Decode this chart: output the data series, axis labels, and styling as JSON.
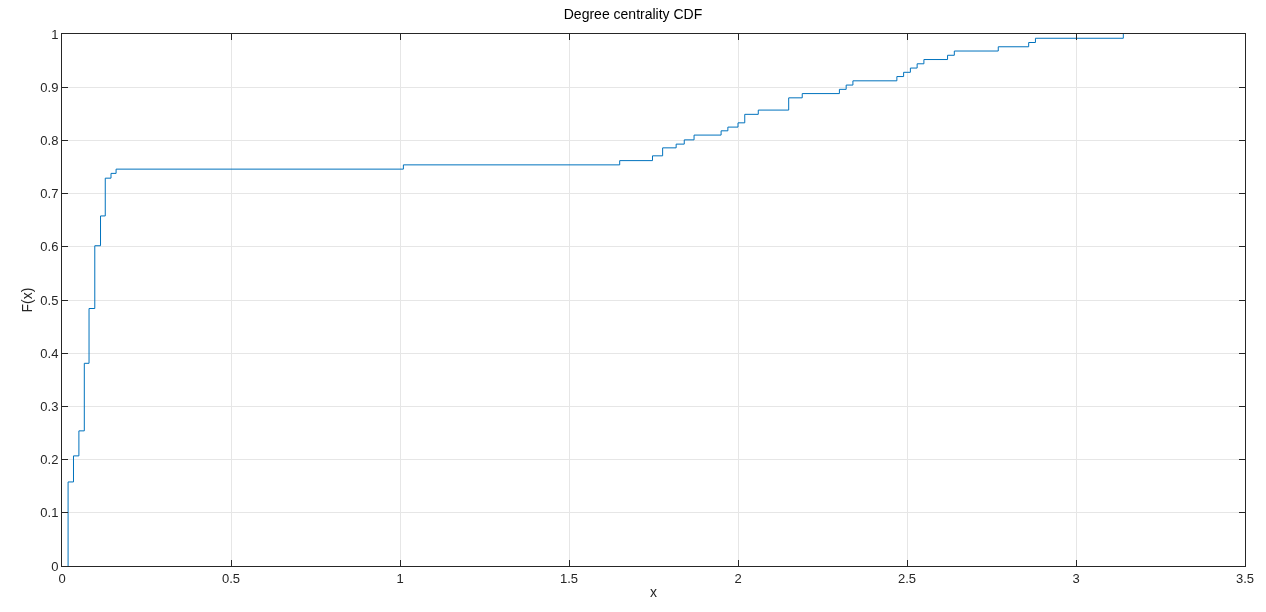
{
  "chart_data": {
    "type": "step",
    "title": "Degree centrality CDF",
    "xlabel": "x",
    "ylabel": "F(x)",
    "x": [
      0.018,
      0.018,
      0.034,
      0.05,
      0.066,
      0.08,
      0.097,
      0.114,
      0.128,
      0.145,
      0.16,
      1.01,
      1.65,
      1.747,
      1.777,
      1.817,
      1.841,
      1.87,
      1.95,
      1.97,
      2.0,
      2.02,
      2.06,
      2.15,
      2.19,
      2.3,
      2.32,
      2.34,
      2.47,
      2.49,
      2.51,
      2.53,
      2.55,
      2.62,
      2.64,
      2.77,
      2.86,
      2.88,
      3.14
    ],
    "series": [
      {
        "color": "#0072bd",
        "values": [
          0,
          0.158,
          0.207,
          0.254,
          0.381,
          0.484,
          0.602,
          0.658,
          0.729,
          0.738,
          0.746,
          0.754,
          0.762,
          0.771,
          0.786,
          0.793,
          0.801,
          0.81,
          0.818,
          0.825,
          0.833,
          0.849,
          0.857,
          0.88,
          0.888,
          0.896,
          0.904,
          0.912,
          0.92,
          0.928,
          0.936,
          0.944,
          0.952,
          0.96,
          0.968,
          0.976,
          0.984,
          0.992,
          1.0
        ]
      }
    ],
    "xlim": [
      0,
      3.5
    ],
    "xticks": [
      0,
      0.5,
      1,
      1.5,
      2,
      2.5,
      3,
      3.5
    ],
    "ylim": [
      0,
      1
    ],
    "yticks": [
      0,
      0.1,
      0.2,
      0.3,
      0.4,
      0.5,
      0.6,
      0.7,
      0.8,
      0.9,
      1
    ],
    "grid": true,
    "marker": "none",
    "line_style": "solid"
  }
}
